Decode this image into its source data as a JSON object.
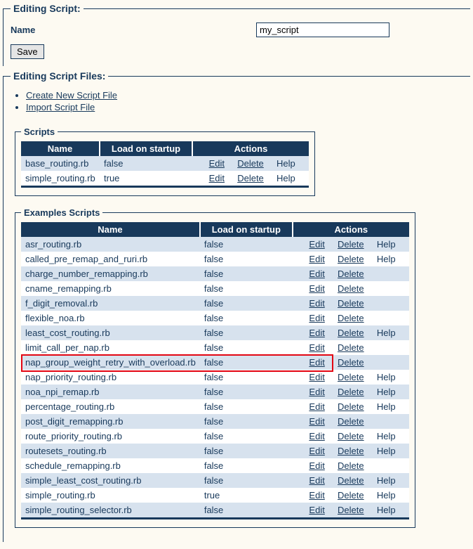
{
  "colors": {
    "primary": "#18395b",
    "bg": "#fdfaf2",
    "row_alt": "#d7e2ee",
    "highlight": "#e30613"
  },
  "editing_script": {
    "legend": "Editing Script:",
    "name_label": "Name",
    "name_value": "my_script",
    "save_label": "Save"
  },
  "editing_files": {
    "legend": "Editing Script Files:",
    "links": {
      "create": "Create New Script File",
      "import": "Import Script File"
    }
  },
  "scripts_section": {
    "legend": "Scripts",
    "headers": {
      "name": "Name",
      "load": "Load on startup",
      "actions": "Actions"
    },
    "action_labels": {
      "edit": "Edit",
      "delete": "Delete",
      "help": "Help"
    },
    "rows": [
      {
        "name": "base_routing.rb",
        "load": "false",
        "edit": true,
        "delete": true,
        "help": true
      },
      {
        "name": "simple_routing.rb",
        "load": "true",
        "edit": true,
        "delete": true,
        "help": true
      }
    ],
    "col_widths": {
      "name": 100,
      "load": 120,
      "actions": 140
    }
  },
  "examples_section": {
    "legend": "Examples Scripts",
    "headers": {
      "name": "Name",
      "load": "Load on startup",
      "actions": "Actions"
    },
    "action_labels": {
      "edit": "Edit",
      "delete": "Delete",
      "help": "Help"
    },
    "highlight_index": 8,
    "col_widths": {
      "name": 210,
      "load": 120,
      "actions": 135
    },
    "rows": [
      {
        "name": "asr_routing.rb",
        "load": "false",
        "edit": true,
        "delete": true,
        "help": true
      },
      {
        "name": "called_pre_remap_and_ruri.rb",
        "load": "false",
        "edit": true,
        "delete": true,
        "help": true
      },
      {
        "name": "charge_number_remapping.rb",
        "load": "false",
        "edit": true,
        "delete": true,
        "help": false
      },
      {
        "name": "cname_remapping.rb",
        "load": "false",
        "edit": true,
        "delete": true,
        "help": false
      },
      {
        "name": "f_digit_removal.rb",
        "load": "false",
        "edit": true,
        "delete": true,
        "help": false
      },
      {
        "name": "flexible_noa.rb",
        "load": "false",
        "edit": true,
        "delete": true,
        "help": false
      },
      {
        "name": "least_cost_routing.rb",
        "load": "false",
        "edit": true,
        "delete": true,
        "help": true
      },
      {
        "name": "limit_call_per_nap.rb",
        "load": "false",
        "edit": true,
        "delete": true,
        "help": false
      },
      {
        "name": "nap_group_weight_retry_with_overload.rb",
        "load": "false",
        "edit": true,
        "delete": true,
        "help": false
      },
      {
        "name": "nap_priority_routing.rb",
        "load": "false",
        "edit": true,
        "delete": true,
        "help": true
      },
      {
        "name": "noa_npi_remap.rb",
        "load": "false",
        "edit": true,
        "delete": true,
        "help": true
      },
      {
        "name": "percentage_routing.rb",
        "load": "false",
        "edit": true,
        "delete": true,
        "help": true
      },
      {
        "name": "post_digit_remapping.rb",
        "load": "false",
        "edit": true,
        "delete": true,
        "help": false
      },
      {
        "name": "route_priority_routing.rb",
        "load": "false",
        "edit": true,
        "delete": true,
        "help": true
      },
      {
        "name": "routesets_routing.rb",
        "load": "false",
        "edit": true,
        "delete": true,
        "help": true
      },
      {
        "name": "schedule_remapping.rb",
        "load": "false",
        "edit": true,
        "delete": true,
        "help": false
      },
      {
        "name": "simple_least_cost_routing.rb",
        "load": "false",
        "edit": true,
        "delete": true,
        "help": true
      },
      {
        "name": "simple_routing.rb",
        "load": "true",
        "edit": true,
        "delete": true,
        "help": true
      },
      {
        "name": "simple_routing_selector.rb",
        "load": "false",
        "edit": true,
        "delete": true,
        "help": true
      }
    ]
  }
}
